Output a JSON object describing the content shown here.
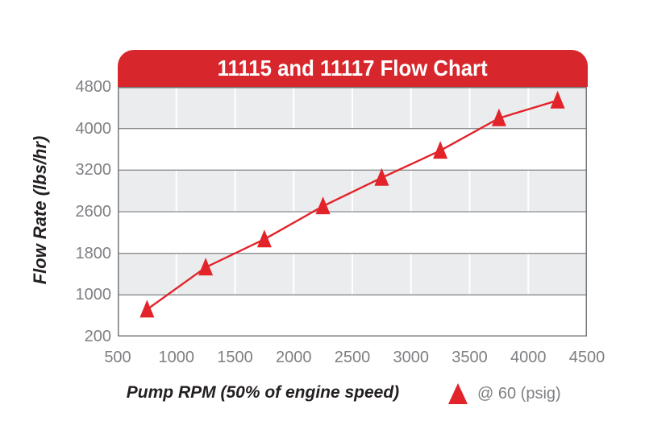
{
  "header": {
    "title": "11115 and 11117 Flow Chart"
  },
  "chart_data": {
    "type": "line",
    "title": "11115 and 11117 Flow Chart",
    "xlabel": "Pump RPM (50% of engine speed)",
    "ylabel": "Flow Rate (lbs/hr)",
    "x_ticks": [
      500,
      1000,
      1500,
      2000,
      2500,
      3000,
      3500,
      4000,
      4500
    ],
    "xlim": [
      500,
      4500
    ],
    "y_ticks_top_to_bottom": [
      4800,
      4000,
      3200,
      2600,
      1800,
      1000,
      200
    ],
    "y_axis_note": "tick values unevenly spaced numerically but drawn at equal pixel intervals",
    "grid": {
      "horizontal": true,
      "vertical": true,
      "banded_rows": true
    },
    "legend": {
      "label": "@ 60 (psig)",
      "position": "bottom-right",
      "marker": "triangle"
    },
    "series": [
      {
        "name": "@ 60 (psig)",
        "marker": "triangle",
        "x": [
          750,
          1250,
          1750,
          2250,
          2750,
          3250,
          3750,
          4250
        ],
        "y": [
          720,
          1530,
          2070,
          2680,
          3090,
          3575,
          4200,
          4540
        ]
      }
    ]
  },
  "colors": {
    "banner_red": "#d7262c",
    "series_red": "#e2232a",
    "band_gray": "#ebecee",
    "grid_horizontal": "#8b8d90",
    "grid_vertical": "#ffffff",
    "plot_border": "#77797c",
    "tick_text": "#7d7f82",
    "axis_title_text": "#231f20",
    "banner_title_text": "#ffffff"
  }
}
